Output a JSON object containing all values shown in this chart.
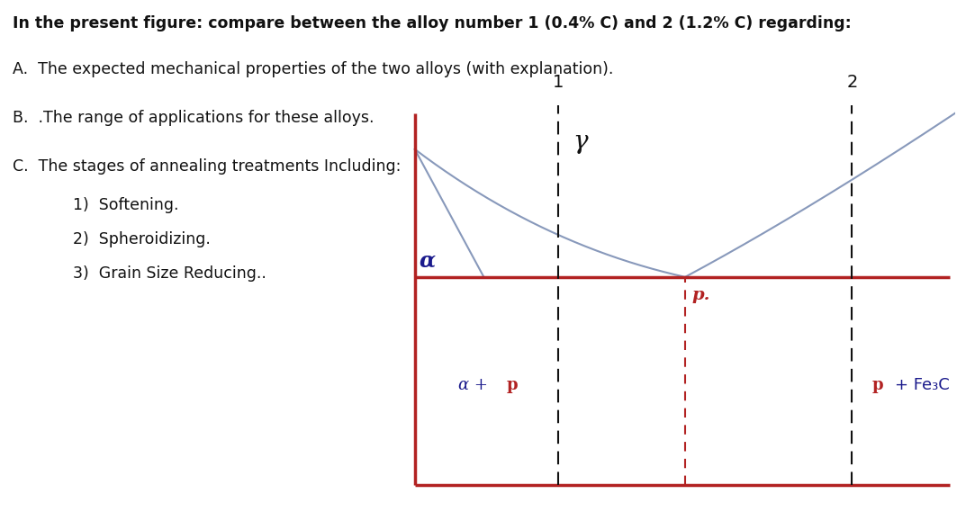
{
  "title_line1": "In the present figure: compare between the alloy number 1 (0.4% C) and 2 (1.2% C) regarding:",
  "text_A": "A.  The expected mechanical properties of the two alloys (with explanation).",
  "text_B": "B.  .The range of applications for these alloys.",
  "text_C": "C.  The stages of annealing treatments Including:",
  "text_1": "1)  Softening.",
  "text_2": "2)  Spheroidizing.",
  "text_3": "3)  Grain Size Reducing..",
  "red_color": "#b22222",
  "blue_line_color": "#8899bb",
  "dark_blue_text": "#1a1a8c",
  "black": "#111111",
  "white": "#ffffff",
  "label_alpha": "α",
  "label_gamma": "γ",
  "label_p": "p",
  "label_alpha_italic": "α",
  "label_p_fe3c_suffix": "Fe₃C",
  "marker1_label": "1",
  "marker2_label": "2",
  "fig_width": 10.83,
  "fig_height": 5.69,
  "dpi": 100
}
